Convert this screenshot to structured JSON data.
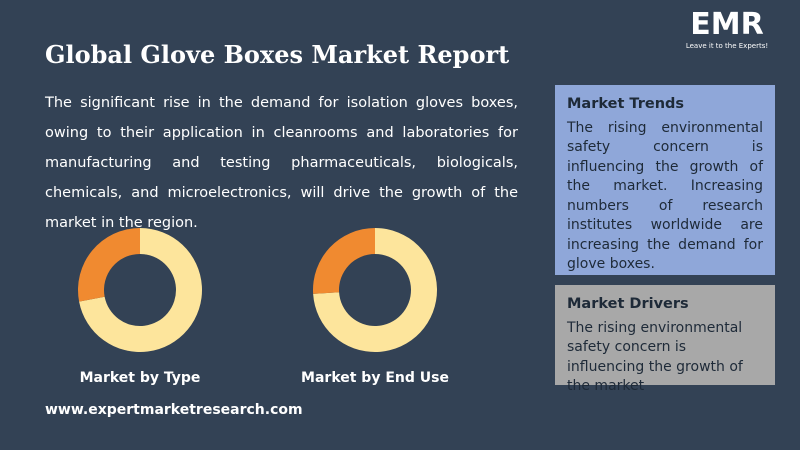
{
  "header": {
    "title": "Global Glove Boxes Market Report",
    "logo": {
      "brand": "EMR",
      "tagline": "Leave it to the Experts!"
    }
  },
  "description": "The significant rise in the demand for isolation gloves boxes, owing to their application in cleanrooms and laboratories for manufacturing and testing pharmaceuticals, biologicals, chemicals, and microelectronics, will drive the growth of the market in the region.",
  "chart_data": [
    {
      "type": "donut",
      "title": "Market by Type",
      "values": [
        72,
        28
      ],
      "colors": [
        "#fde59c",
        "#f08a30"
      ]
    },
    {
      "type": "donut",
      "title": "Market by End Use",
      "values": [
        74,
        26
      ],
      "colors": [
        "#fde59c",
        "#f08a30"
      ]
    }
  ],
  "panels": [
    {
      "title": "Market Trends",
      "text": "The rising environmental safety concern is influencing the growth of the market. Increasing numbers of research institutes worldwide are increasing the demand for glove boxes."
    },
    {
      "title": "Market Drivers",
      "text": "The rising environmental safety concern is influencing the growth of the market"
    }
  ],
  "footer": {
    "website": "www.expertmarketresearch.com"
  }
}
